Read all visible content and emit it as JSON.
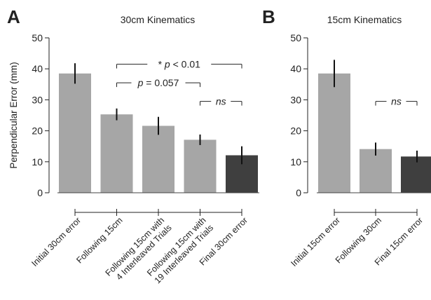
{
  "chart_data": [
    {
      "type": "bar",
      "panel": "A",
      "title": "30cm Kinematics",
      "ylabel": "Perpendicular Error (mm)",
      "xlabel": "",
      "ylim": [
        0,
        50
      ],
      "yticks": [
        "0",
        "10",
        "20",
        "30",
        "40",
        "50"
      ],
      "grid": false,
      "categories": [
        [
          "Initial 30cm error"
        ],
        [
          "Following 15cm"
        ],
        [
          "Following 15cm with",
          "4 Interleaved Trials"
        ],
        [
          "Following 15cm with",
          "19 Interleaved Trials"
        ],
        [
          "Final 30cm error"
        ]
      ],
      "values": [
        38.5,
        25.3,
        21.6,
        17.1,
        12.1
      ],
      "errors": [
        3.3,
        1.9,
        2.9,
        1.7,
        2.9
      ],
      "bar_colors": [
        "#a6a6a6",
        "#a6a6a6",
        "#a6a6a6",
        "#a6a6a6",
        "#3f3f3f"
      ],
      "annotations": [
        {
          "from": 1,
          "to": 4,
          "y": 41.5,
          "symbol": "*",
          "text": "p < 0.01"
        },
        {
          "from": 1,
          "to": 3,
          "y": 35.5,
          "text": "p = 0.057"
        },
        {
          "from": 3,
          "to": 4,
          "y": 29.5,
          "text": "ns"
        }
      ]
    },
    {
      "type": "bar",
      "panel": "B",
      "title": "15cm Kinematics",
      "ylabel": "",
      "xlabel": "",
      "ylim": [
        0,
        50
      ],
      "yticks": [
        "0",
        "10",
        "20",
        "30",
        "40",
        "50"
      ],
      "grid": false,
      "categories": [
        [
          "Initial 15cm error"
        ],
        [
          "Following 30cm"
        ],
        [
          "Final 15cm error"
        ]
      ],
      "values": [
        38.5,
        14.1,
        11.7
      ],
      "errors": [
        4.4,
        2.1,
        1.9
      ],
      "bar_colors": [
        "#a6a6a6",
        "#a6a6a6",
        "#3f3f3f"
      ],
      "annotations": [
        {
          "from": 1,
          "to": 2,
          "y": 29.5,
          "text": "ns"
        }
      ]
    }
  ]
}
